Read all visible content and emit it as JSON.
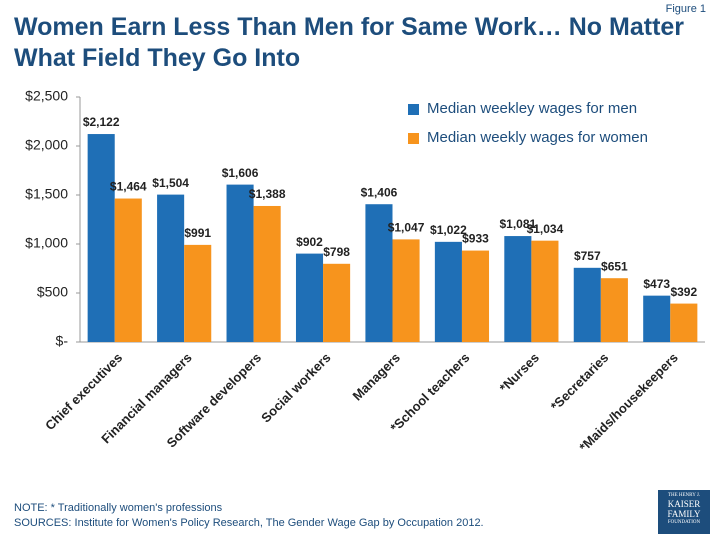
{
  "chart_data": {
    "type": "bar",
    "figure_label": "Figure 1",
    "title": "Women Earn Less Than Men for Same Work… No Matter What Field They Go Into",
    "categories": [
      "Chief executives",
      "Financial managers",
      "Software developers",
      "Social workers",
      "Managers",
      "*School teachers",
      "*Nurses",
      "*Secretaries",
      "*Maids/housekeepers"
    ],
    "series": [
      {
        "name": "Median weekley wages for men",
        "color": "#1f6fb6",
        "values": [
          2122,
          1504,
          1606,
          902,
          1406,
          1022,
          1081,
          757,
          473
        ],
        "value_labels": [
          "$2,122",
          "$1,504",
          "$1,606",
          "$902",
          "$1,406",
          "$1,022",
          "$1,081",
          "$757",
          "$473"
        ]
      },
      {
        "name": "Median weekly wages for women",
        "color": "#f7941d",
        "values": [
          1464,
          991,
          1388,
          798,
          1047,
          933,
          1034,
          651,
          392
        ],
        "value_labels": [
          "$1,464",
          "$991",
          "$1,388",
          "$798",
          "$1,047",
          "$933",
          "$1,034",
          "$651",
          "$392"
        ]
      }
    ],
    "ylim": [
      0,
      2500
    ],
    "yticks": [
      {
        "value": 0,
        "label": "$-"
      },
      {
        "value": 500,
        "label": "$500"
      },
      {
        "value": 1000,
        "label": "$1,000"
      },
      {
        "value": 1500,
        "label": "$1,500"
      },
      {
        "value": 2000,
        "label": "$2,000"
      },
      {
        "value": 2500,
        "label": "$2,500"
      }
    ],
    "legend": "top-right"
  },
  "footer": {
    "note": "NOTE: * Traditionally women's professions",
    "sources": "SOURCES: Institute for Women's Policy Research, The Gender Wage Gap by Occupation 2012.",
    "logo": [
      "THE HENRY J.",
      "KAISER",
      "FAMILY",
      "FOUNDATION"
    ]
  }
}
